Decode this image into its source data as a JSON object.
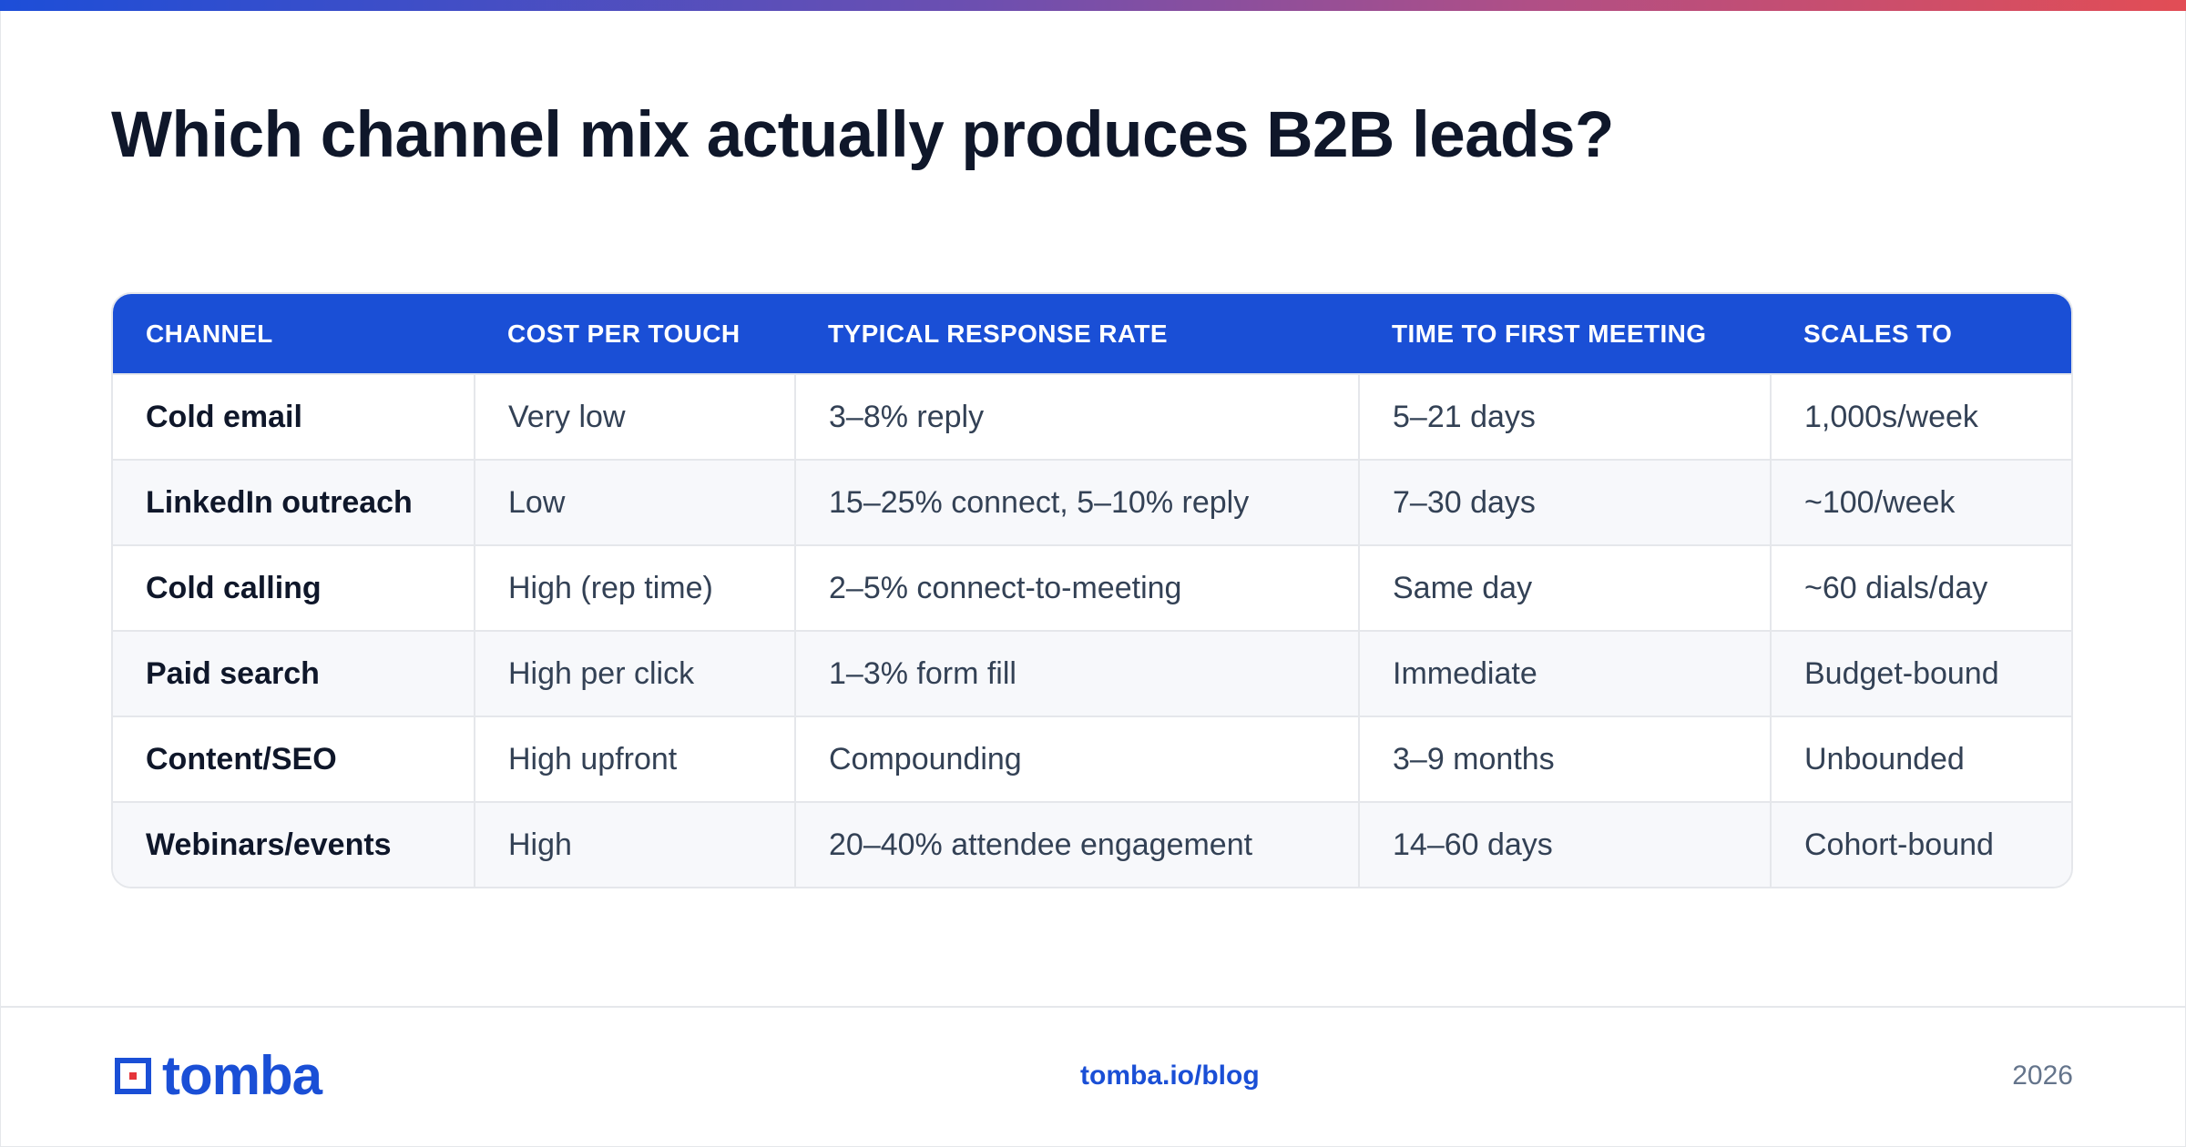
{
  "title": "Which channel mix actually produces B2B leads?",
  "colors": {
    "accent": "#1a4fd6",
    "gradient_start": "#1d4ed8",
    "gradient_end": "#e24d55",
    "logo_red": "#e5343a"
  },
  "table": {
    "headers": [
      "CHANNEL",
      "COST PER TOUCH",
      "TYPICAL RESPONSE RATE",
      "TIME TO FIRST MEETING",
      "SCALES TO"
    ],
    "rows": [
      [
        "Cold email",
        "Very low",
        "3–8% reply",
        "5–21 days",
        "1,000s/week"
      ],
      [
        "LinkedIn outreach",
        "Low",
        "15–25% connect, 5–10% reply",
        "7–30 days",
        "~100/week"
      ],
      [
        "Cold calling",
        "High (rep time)",
        "2–5% connect-to-meeting",
        "Same day",
        "~60 dials/day"
      ],
      [
        "Paid search",
        "High per click",
        "1–3% form fill",
        "Immediate",
        "Budget-bound"
      ],
      [
        "Content/SEO",
        "High upfront",
        "Compounding",
        "3–9 months",
        "Unbounded"
      ],
      [
        "Webinars/events",
        "High",
        "20–40% attendee engagement",
        "14–60 days",
        "Cohort-bound"
      ]
    ]
  },
  "footer": {
    "logo_text": "tomba",
    "logo_icon": "tomba-logo-icon",
    "link": "tomba.io/blog",
    "year": "2026"
  }
}
